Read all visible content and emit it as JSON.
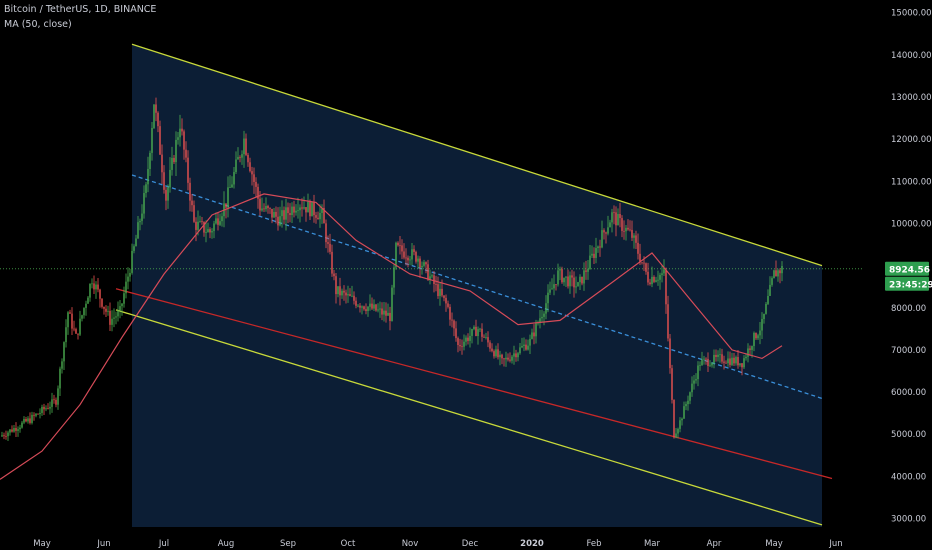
{
  "header": {
    "symbol_line": "Bitcoin / TetherUS, 1D, BINANCE",
    "indicator_line": "MA (50, close)"
  },
  "colors": {
    "background": "#000000",
    "up_candle": "#4caf50",
    "down_candle": "#ef5350",
    "ma": "#d64b58",
    "channel_lines": "#c8d93a",
    "channel_fill": "#0d2038",
    "mid_line": "#3a8fd9",
    "lower_line": "#c62828",
    "price_line": "#4caf50",
    "badge_green": "#2e9e4f"
  },
  "chart_data": {
    "type": "candlestick",
    "title": "Bitcoin / TetherUS, 1D, BINANCE",
    "indicator": "MA (50, close)",
    "y_axis": {
      "ticks": [
        "15000.00",
        "14000.00",
        "13000.00",
        "12000.00",
        "11000.00",
        "10000.00",
        "9000.00",
        "8000.00",
        "7000.00",
        "6000.00",
        "5000.00",
        "4000.00",
        "3000.00"
      ],
      "ylim": [
        2800,
        15300
      ],
      "side": "right"
    },
    "x_axis": {
      "ticks": [
        "May",
        "Jun",
        "Jul",
        "Aug",
        "Sep",
        "Oct",
        "Nov",
        "Dec",
        "2020",
        "Feb",
        "Mar",
        "Apr",
        "May",
        "Jun"
      ],
      "bold_ticks": [
        "2020"
      ],
      "xlim": [
        "2019-04-10",
        "2020-06-14"
      ]
    },
    "current_price": "8924.56",
    "countdown": "23:45:29",
    "price_path": [
      [
        "2019-04-10",
        4950
      ],
      [
        "2019-04-25",
        5350
      ],
      [
        "2019-05-08",
        5800
      ],
      [
        "2019-05-14",
        7900
      ],
      [
        "2019-05-18",
        7300
      ],
      [
        "2019-05-26",
        8700
      ],
      [
        "2019-06-04",
        7700
      ],
      [
        "2019-06-09",
        7900
      ],
      [
        "2019-06-16",
        9400
      ],
      [
        "2019-06-22",
        10800
      ],
      [
        "2019-06-26",
        12900
      ],
      [
        "2019-07-02",
        10600
      ],
      [
        "2019-07-09",
        12400
      ],
      [
        "2019-07-16",
        10000
      ],
      [
        "2019-07-24",
        9800
      ],
      [
        "2019-08-01",
        10500
      ],
      [
        "2019-08-10",
        12000
      ],
      [
        "2019-08-18",
        10400
      ],
      [
        "2019-08-28",
        10100
      ],
      [
        "2019-09-06",
        10500
      ],
      [
        "2019-09-18",
        10200
      ],
      [
        "2019-09-25",
        8400
      ],
      [
        "2019-10-07",
        8100
      ],
      [
        "2019-10-22",
        7800
      ],
      [
        "2019-10-25",
        9400
      ],
      [
        "2019-11-05",
        9200
      ],
      [
        "2019-11-20",
        8000
      ],
      [
        "2019-11-25",
        7100
      ],
      [
        "2019-12-05",
        7500
      ],
      [
        "2019-12-17",
        6700
      ],
      [
        "2019-12-31",
        7200
      ],
      [
        "2020-01-14",
        8800
      ],
      [
        "2020-01-24",
        8500
      ],
      [
        "2020-02-10",
        10200
      ],
      [
        "2020-02-20",
        9700
      ],
      [
        "2020-02-28",
        8700
      ],
      [
        "2020-03-07",
        8800
      ],
      [
        "2020-03-12",
        5000
      ],
      [
        "2020-03-15",
        5300
      ],
      [
        "2020-03-25",
        6700
      ],
      [
        "2020-04-05",
        6800
      ],
      [
        "2020-04-15",
        6700
      ],
      [
        "2020-04-20",
        7200
      ],
      [
        "2020-04-25",
        7600
      ],
      [
        "2020-05-01",
        8800
      ],
      [
        "2020-05-05",
        8924.56
      ]
    ],
    "ma_path": [
      [
        "2019-04-10",
        3930
      ],
      [
        "2019-05-01",
        4600
      ],
      [
        "2019-05-20",
        5700
      ],
      [
        "2019-06-10",
        7300
      ],
      [
        "2019-07-01",
        8800
      ],
      [
        "2019-07-25",
        10200
      ],
      [
        "2019-08-20",
        10700
      ],
      [
        "2019-09-15",
        10500
      ],
      [
        "2019-10-05",
        9600
      ],
      [
        "2019-11-01",
        8800
      ],
      [
        "2019-12-01",
        8400
      ],
      [
        "2019-12-25",
        7600
      ],
      [
        "2020-01-15",
        7700
      ],
      [
        "2020-02-10",
        8600
      ],
      [
        "2020-03-01",
        9300
      ],
      [
        "2020-03-20",
        8200
      ],
      [
        "2020-04-10",
        7000
      ],
      [
        "2020-04-25",
        6800
      ],
      [
        "2020-05-05",
        7100
      ]
    ],
    "drawings": {
      "channel_upper": [
        [
          "2019-06-15",
          14250
        ],
        [
          "2020-05-25",
          9000
        ]
      ],
      "channel_lower": [
        [
          "2019-06-07",
          7950
        ],
        [
          "2020-05-25",
          2850
        ]
      ],
      "channel_mid": [
        [
          "2019-06-15",
          11150
        ],
        [
          "2020-05-25",
          5850
        ]
      ],
      "red_line": [
        [
          "2019-06-07",
          8450
        ],
        [
          "2020-05-30",
          3950
        ]
      ],
      "channel_box": [
        [
          "2019-06-15",
          "2020-05-25"
        ]
      ]
    }
  }
}
